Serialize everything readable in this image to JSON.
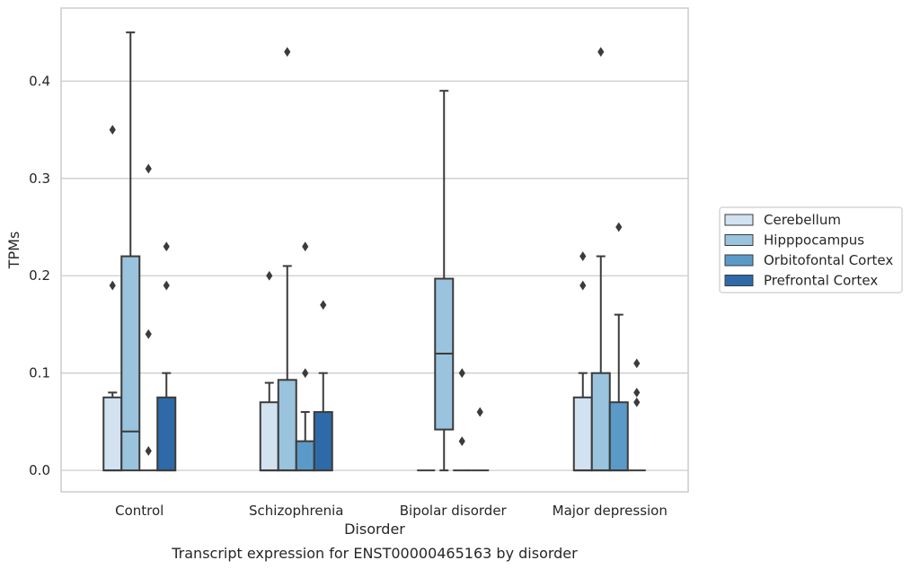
{
  "caption": "Transcript expression for ENST00000465163 by disorder",
  "chart_data": {
    "type": "box",
    "xlabel": "Disorder",
    "ylabel": "TPMs",
    "ylim": [
      -0.022,
      0.475
    ],
    "yticks": [
      0.0,
      0.1,
      0.2,
      0.3,
      0.4
    ],
    "ytick_labels": [
      "0.0",
      "0.1",
      "0.2",
      "0.3",
      "0.4"
    ],
    "grid": true,
    "legend_position": "right",
    "categories": [
      "Control",
      "Schizophrenia",
      "Bipolar disorder",
      "Major depression"
    ],
    "series": [
      {
        "name": "Cerebellum",
        "color": "#d2e2f1",
        "boxes": [
          {
            "q1": 0.0,
            "median": 0.0,
            "q3": 0.075,
            "whislo": 0.0,
            "whishi": 0.08,
            "fliers": [
              0.35,
              0.19
            ]
          },
          {
            "q1": 0.0,
            "median": 0.0,
            "q3": 0.07,
            "whislo": 0.0,
            "whishi": 0.09,
            "fliers": [
              0.2
            ]
          },
          {
            "q1": 0.0,
            "median": 0.0,
            "q3": 0.0,
            "whislo": 0.0,
            "whishi": 0.0,
            "fliers": []
          },
          {
            "q1": 0.0,
            "median": 0.0,
            "q3": 0.075,
            "whislo": 0.0,
            "whishi": 0.1,
            "fliers": [
              0.22,
              0.19
            ]
          }
        ]
      },
      {
        "name": "Hipppocampus",
        "color": "#9ac3dd",
        "boxes": [
          {
            "q1": 0.0,
            "median": 0.04,
            "q3": 0.22,
            "whislo": 0.0,
            "whishi": 0.45,
            "fliers": []
          },
          {
            "q1": 0.0,
            "median": 0.0,
            "q3": 0.093,
            "whislo": 0.0,
            "whishi": 0.21,
            "fliers": [
              0.43
            ]
          },
          {
            "q1": 0.042,
            "median": 0.12,
            "q3": 0.197,
            "whislo": 0.0,
            "whishi": 0.39,
            "fliers": []
          },
          {
            "q1": 0.0,
            "median": 0.0,
            "q3": 0.1,
            "whislo": 0.0,
            "whishi": 0.22,
            "fliers": [
              0.43
            ]
          }
        ]
      },
      {
        "name": "Orbitofontal Cortex",
        "color": "#5b9ac8",
        "boxes": [
          {
            "q1": 0.0,
            "median": 0.0,
            "q3": 0.0,
            "whislo": 0.0,
            "whishi": 0.0,
            "fliers": [
              0.31,
              0.14,
              0.02
            ]
          },
          {
            "q1": 0.0,
            "median": 0.0,
            "q3": 0.03,
            "whislo": 0.0,
            "whishi": 0.06,
            "fliers": [
              0.23,
              0.1
            ]
          },
          {
            "q1": 0.0,
            "median": 0.0,
            "q3": 0.0,
            "whislo": 0.0,
            "whishi": 0.0,
            "fliers": [
              0.1,
              0.03
            ]
          },
          {
            "q1": 0.0,
            "median": 0.0,
            "q3": 0.07,
            "whislo": 0.0,
            "whishi": 0.16,
            "fliers": [
              0.25
            ]
          }
        ]
      },
      {
        "name": "Prefrontal Cortex",
        "color": "#2e6aa8",
        "boxes": [
          {
            "q1": 0.0,
            "median": 0.0,
            "q3": 0.075,
            "whislo": 0.0,
            "whishi": 0.1,
            "fliers": [
              0.23,
              0.19
            ]
          },
          {
            "q1": 0.0,
            "median": 0.0,
            "q3": 0.06,
            "whislo": 0.0,
            "whishi": 0.1,
            "fliers": [
              0.17
            ]
          },
          {
            "q1": 0.0,
            "median": 0.0,
            "q3": 0.0,
            "whislo": 0.0,
            "whishi": 0.0,
            "fliers": [
              0.06
            ]
          },
          {
            "q1": 0.0,
            "median": 0.0,
            "q3": 0.0,
            "whislo": 0.0,
            "whishi": 0.0,
            "fliers": [
              0.11,
              0.08,
              0.07
            ]
          }
        ]
      }
    ]
  }
}
